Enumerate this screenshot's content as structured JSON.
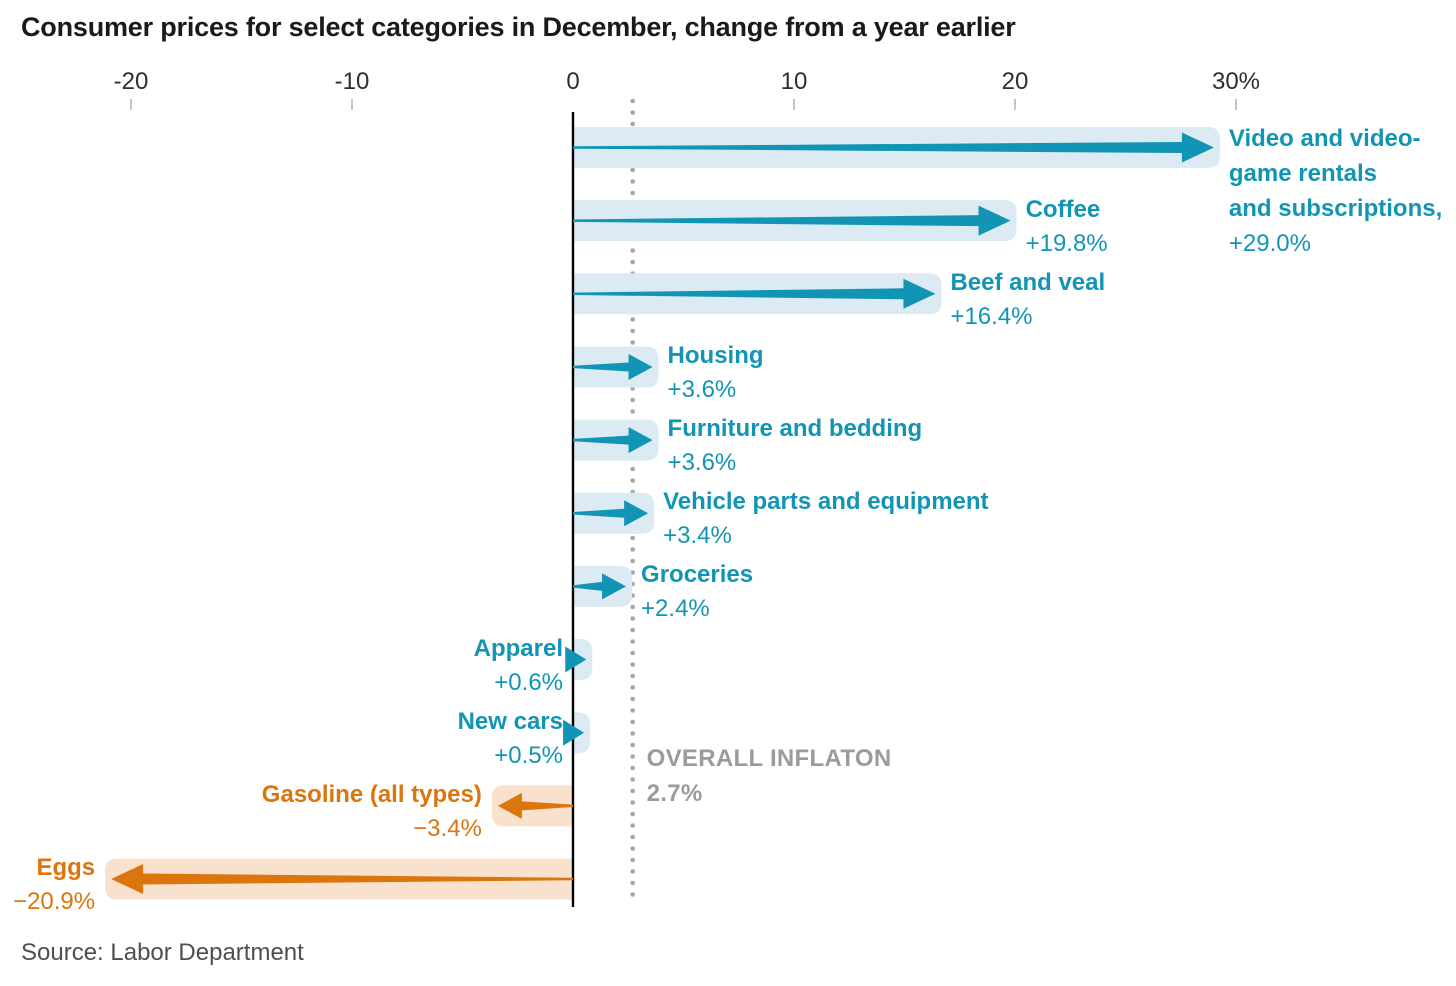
{
  "chart_data": {
    "type": "bar",
    "title": "Consumer prices for select categories in December, change from a year earlier",
    "source": "Source: Labor Department",
    "xlabel": "",
    "ylabel": "",
    "legend": "none",
    "grid": "off",
    "axis": {
      "range": [
        -25,
        38
      ],
      "ticks": [
        {
          "value": -20,
          "label": "-20"
        },
        {
          "value": -10,
          "label": "-10"
        },
        {
          "value": 0,
          "label": "0"
        },
        {
          "value": 10,
          "label": "10"
        },
        {
          "value": 20,
          "label": "20"
        },
        {
          "value": 30,
          "label": "30%"
        }
      ]
    },
    "reference_line": {
      "value": 2.7,
      "label": "OVERALL INFLATON",
      "value_label": "2.7%",
      "style": "dotted"
    },
    "categories": [
      "Video and video-game rentals and subscriptions",
      "Coffee",
      "Beef and veal",
      "Housing",
      "Furniture and bedding",
      "Vehicle parts and equipment",
      "Groceries",
      "Apparel",
      "New cars",
      "Gasoline (all types)",
      "Eggs"
    ],
    "values": [
      29.0,
      19.8,
      16.4,
      3.6,
      3.6,
      3.4,
      2.4,
      0.6,
      0.5,
      -3.4,
      -20.9
    ],
    "bars": [
      {
        "label_lines": [
          "Video and video-",
          "game rentals",
          "and subscriptions,"
        ],
        "value": 29.0,
        "value_label": "+29.0%",
        "label_side": "right"
      },
      {
        "label_lines": [
          "Coffee"
        ],
        "value": 19.8,
        "value_label": "+19.8%",
        "label_side": "right"
      },
      {
        "label_lines": [
          "Beef and veal"
        ],
        "value": 16.4,
        "value_label": "+16.4%",
        "label_side": "right"
      },
      {
        "label_lines": [
          "Housing"
        ],
        "value": 3.6,
        "value_label": "+3.6%",
        "label_side": "right"
      },
      {
        "label_lines": [
          "Furniture and bedding"
        ],
        "value": 3.6,
        "value_label": "+3.6%",
        "label_side": "right"
      },
      {
        "label_lines": [
          "Vehicle parts and equipment"
        ],
        "value": 3.4,
        "value_label": "+3.4%",
        "label_side": "right"
      },
      {
        "label_lines": [
          "Groceries"
        ],
        "value": 2.4,
        "value_label": "+2.4%",
        "label_side": "right"
      },
      {
        "label_lines": [
          "Apparel"
        ],
        "value": 0.6,
        "value_label": "+0.6%",
        "label_side": "left"
      },
      {
        "label_lines": [
          "New cars"
        ],
        "value": 0.5,
        "value_label": "+0.5%",
        "label_side": "left"
      },
      {
        "label_lines": [
          "Gasoline (all types)"
        ],
        "value": -3.4,
        "value_label": "−3.4%",
        "label_side": "left"
      },
      {
        "label_lines": [
          "Eggs"
        ],
        "value": -20.9,
        "value_label": "−20.9%",
        "label_side": "left"
      }
    ]
  },
  "colors": {
    "positive": "#1295b4",
    "positive_band": "#dcebf3",
    "negative": "#dd750f",
    "negative_band": "#f8e1cd",
    "axis_line": "#000000",
    "tick_mark": "#c4c4c4",
    "tick_text": "#2d2d2d",
    "reference_dots": "#a6a6a6",
    "reference_text": "#9b9b9b",
    "title_text": "#1a1a1a",
    "source_text": "#4f4f4f"
  }
}
